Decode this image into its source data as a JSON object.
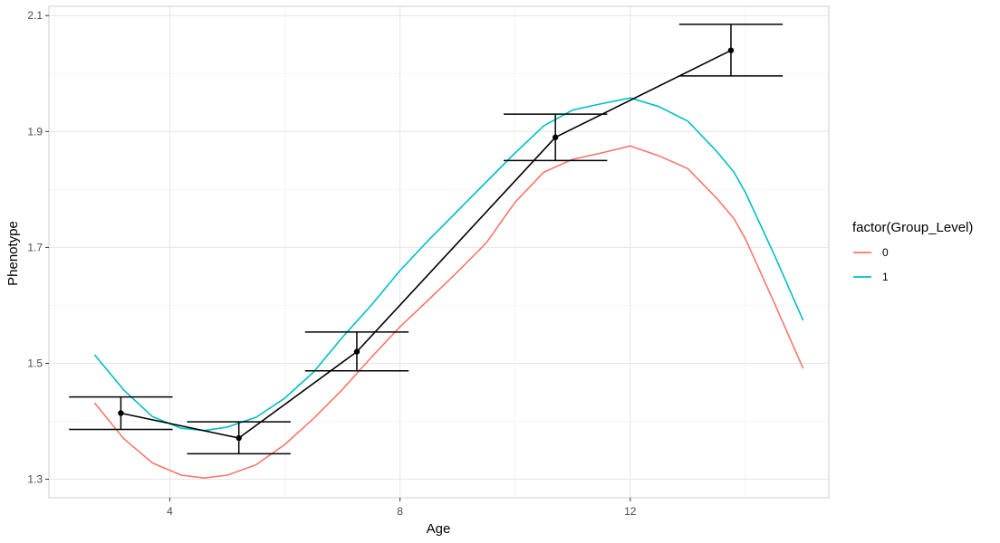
{
  "chart_data": {
    "type": "line",
    "title": "",
    "xlabel": "Age",
    "ylabel": "Phenotype",
    "xlim": [
      1.9,
      15.45
    ],
    "ylim": [
      1.268,
      2.116
    ],
    "x_ticks": [
      4,
      8,
      12
    ],
    "y_ticks": [
      1.3,
      1.5,
      1.7,
      1.9,
      2.1
    ],
    "x_tick_labels": [
      "4",
      "8",
      "12"
    ],
    "y_tick_labels": [
      "1.3",
      "1.5",
      "1.7",
      "1.9",
      "2.1"
    ],
    "grid": true,
    "legend": {
      "title": "factor(Group_Level)",
      "position": "right",
      "entries": [
        {
          "label": "0",
          "color": "#F8766D"
        },
        {
          "label": "1",
          "color": "#00BFC4"
        }
      ]
    },
    "series": [
      {
        "name": "0",
        "color": "#F8766D",
        "x": [
          2.7,
          3.2,
          3.7,
          4.2,
          4.6,
          5.0,
          5.5,
          6.0,
          6.5,
          7.0,
          7.5,
          8.0,
          8.5,
          9.0,
          9.5,
          10.0,
          10.5,
          11.0,
          11.5,
          12.0,
          12.5,
          13.0,
          13.5,
          13.8,
          14.0,
          14.5,
          15.0
        ],
        "y": [
          1.431,
          1.37,
          1.328,
          1.307,
          1.302,
          1.307,
          1.325,
          1.36,
          1.405,
          1.455,
          1.51,
          1.563,
          1.61,
          1.658,
          1.708,
          1.778,
          1.83,
          1.852,
          1.863,
          1.875,
          1.858,
          1.836,
          1.785,
          1.75,
          1.715,
          1.605,
          1.492
        ]
      },
      {
        "name": "1",
        "color": "#00BFC4",
        "x": [
          2.7,
          3.2,
          3.7,
          4.2,
          4.6,
          5.0,
          5.5,
          6.0,
          6.5,
          7.0,
          7.5,
          8.0,
          8.5,
          9.0,
          9.5,
          10.0,
          10.5,
          11.0,
          11.5,
          12.0,
          12.5,
          13.0,
          13.5,
          13.8,
          14.0,
          14.5,
          15.0
        ],
        "y": [
          1.514,
          1.454,
          1.408,
          1.388,
          1.384,
          1.39,
          1.407,
          1.44,
          1.485,
          1.545,
          1.6,
          1.66,
          1.713,
          1.763,
          1.813,
          1.863,
          1.91,
          1.937,
          1.948,
          1.958,
          1.943,
          1.918,
          1.866,
          1.83,
          1.795,
          1.688,
          1.575
        ]
      },
      {
        "name": "",
        "color": "#000000",
        "x": [
          3.15,
          5.2,
          7.25,
          10.7,
          13.75
        ],
        "y": [
          1.414,
          1.371,
          1.52,
          1.89,
          2.04
        ],
        "ymin": [
          1.386,
          1.344,
          1.487,
          1.85,
          1.996
        ],
        "ymax": [
          1.442,
          1.399,
          1.554,
          1.93,
          2.085
        ],
        "errorbar_width": 1.8
      }
    ]
  }
}
